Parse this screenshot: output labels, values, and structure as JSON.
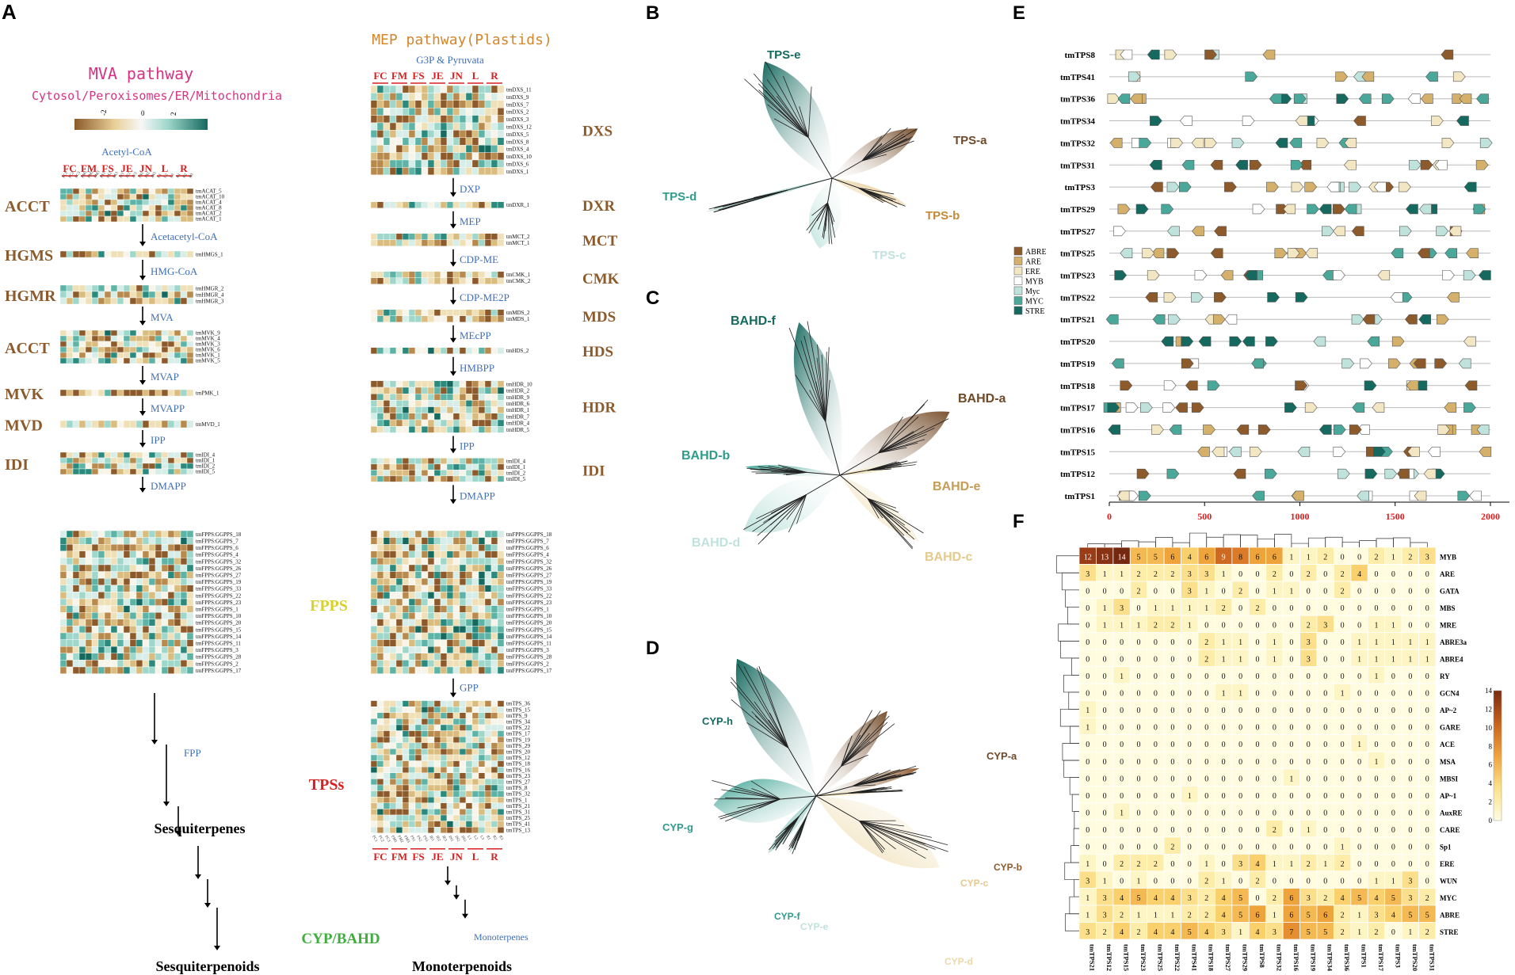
{
  "colors": {
    "brown": "#8c5a2b",
    "tan": "#d4b06a",
    "cream": "#f3e6c2",
    "white": "#f7f7f7",
    "mint": "#bfe3dc",
    "teal": "#4aa89a",
    "dark_teal": "#15695f",
    "blue_label": "#3f6fb5",
    "red_label": "#d82020",
    "pink_label": "#d63384",
    "orange_label": "#d4862a",
    "yellow_label": "#d7d12a",
    "green_label": "#3fae3f"
  },
  "panel_labels": [
    "A",
    "B",
    "C",
    "D",
    "E",
    "F"
  ],
  "panel_a": {
    "mva_title": "MVA pathway",
    "mva_subtitle": "Cytosol/Peroxisomes/ER/Mitochondria",
    "mep_title": "MEP pathway(Plastids)",
    "color_key": [
      "-2",
      "0",
      "2"
    ],
    "tissue_groups": [
      "FC",
      "FM",
      "FS",
      "JE",
      "JN",
      "L",
      "R"
    ],
    "sample_labels": [
      "FC1",
      "FC2",
      "FC3",
      "FM1",
      "FM2",
      "FM3",
      "FS1",
      "FS2",
      "FS3",
      "JE1",
      "JE2",
      "JE3",
      "JN1",
      "JN2",
      "JN3",
      "L1",
      "L2",
      "L3",
      "R1",
      "R2",
      "R3"
    ],
    "mva_start": "Acetyl-CoA",
    "mep_start": "G3P & Pyruvata",
    "mva_blocks": [
      {
        "enzyme": "ACCT",
        "genes": [
          "tmACAT_5",
          "tmACAT_10",
          "tmACAT_4",
          "tmACAT_8",
          "tmACAT_2",
          "tmACAT_1"
        ],
        "next": "Acetacetyl-CoA"
      },
      {
        "enzyme": "HGMS",
        "genes": [
          "tmHMGS_1"
        ],
        "next": "HMG-CoA"
      },
      {
        "enzyme": "HGMR",
        "genes": [
          "tmHMGR_2",
          "tmHMGR_4",
          "tmHMGR_3"
        ],
        "next": "MVA"
      },
      {
        "enzyme": "ACCT",
        "genes": [
          "tmMVK_9",
          "tmMVK_4",
          "tmMVK_3",
          "tmMVK_6",
          "tmMVK_1",
          "tmMVK_5"
        ],
        "next": "MVAP"
      },
      {
        "enzyme": "MVK",
        "genes": [
          "tmPMK_1"
        ],
        "next": "MVAPP"
      },
      {
        "enzyme": "MVD",
        "genes": [
          "tmMVD_1"
        ],
        "next": "IPP"
      },
      {
        "enzyme": "IDI",
        "genes": [
          "tmIDI_4",
          "tmIDI_1",
          "tmIDI_2",
          "tmIDI_5"
        ],
        "next": "DMAPP"
      }
    ],
    "mep_blocks": [
      {
        "enzyme": "DXS",
        "genes": [
          "tmDXS_11",
          "tmDXS_9",
          "tmDXS_7",
          "tmDXS_2",
          "tmDXS_3",
          "tmDXS_12",
          "tmDXS_5",
          "tmDXS_8",
          "tmDXS_4",
          "tmDXS_10",
          "tmDXS_6",
          "tmDXS_1"
        ],
        "next": "DXP"
      },
      {
        "enzyme": "DXR",
        "genes": [
          "tmDXR_1"
        ],
        "next": "MEP"
      },
      {
        "enzyme": "MCT",
        "genes": [
          "tmMCT_2",
          "tmMCT_1"
        ],
        "next": "CDP-ME"
      },
      {
        "enzyme": "CMK",
        "genes": [
          "tmCMK_1",
          "tmCMK_2"
        ],
        "next": "CDP-ME2P"
      },
      {
        "enzyme": "MDS",
        "genes": [
          "tmMDS_2",
          "tmMDS_1"
        ],
        "next": "MEcPP"
      },
      {
        "enzyme": "HDS",
        "genes": [
          "tmHDS_2"
        ],
        "next": "HMBPP"
      },
      {
        "enzyme": "HDR",
        "genes": [
          "tmHDR_10",
          "tmHDR_2",
          "tmHDR_9",
          "tmHDR_6",
          "tmHDR_1",
          "tmHDR_7",
          "tmHDR_4",
          "tmHDR_5"
        ],
        "next": "IPP"
      },
      {
        "enzyme": "IDI",
        "genes": [
          "tmIDI_4",
          "tmIDI_1",
          "tmIDI_2",
          "tmIDI_5"
        ],
        "next": "DMAPP"
      }
    ],
    "fpps_label": "FPPS",
    "fpps_genes": [
      "tmFPPS:GGPPS_18",
      "tmFPPS:GGPPS_7",
      "tmFPPS:GGPPS_6",
      "tmFPPS:GGPPS_4",
      "tmFPPS:GGPPS_32",
      "tmFPPS:GGPPS_26",
      "tmFPPS:GGPPS_27",
      "tmFPPS:GGPPS_19",
      "tmFPPS:GGPPS_33",
      "tmFPPS:GGPPS_22",
      "tmFPPS:GGPPS_23",
      "tmFPPS:GGPPS_1",
      "tmFPPS:GGPPS_10",
      "tmFPPS:GGPPS_20",
      "tmFPPS:GGPPS_15",
      "tmFPPS:GGPPS_14",
      "tmFPPS:GGPPS_11",
      "tmFPPS:GGPPS_3",
      "tmFPPS:GGPPS_28",
      "tmFPPS:GGPPS_2",
      "tmFPPS:GGPPS_17"
    ],
    "gpp_label": "GPP",
    "tps_label": "TPSs",
    "tps_genes": [
      "tmTPS_36",
      "tmTPS_15",
      "tmTPS_9",
      "tmTPS_34",
      "tmTPS_22",
      "tmTPS_17",
      "tmTPS_19",
      "tmTPS_29",
      "tmTPS_20",
      "tmTPS_12",
      "tmTPS_18",
      "tmTPS_16",
      "tmTPS_23",
      "tmTPS_27",
      "tmTPS_8",
      "tmTPS_32",
      "tmTPS_1",
      "tmTPS_21",
      "tmTPS_31",
      "tmTPS_25",
      "tmTPS_41",
      "tmTPS_13"
    ],
    "fpp_label": "FPP",
    "sesquiterpenes": "Sesquiterpenes",
    "sesquiterpenoids": "Sesquiterpenoids",
    "cyp_bahd": "CYP/BAHD",
    "monoterpenes": "Monoterpenes",
    "monoterpenoids": "Monoterpenoids"
  },
  "panel_b": {
    "clades": [
      "TPS-e",
      "TPS-a",
      "TPS-b",
      "TPS-c",
      "TPS-d"
    ]
  },
  "panel_c": {
    "clades": [
      "BAHD-f",
      "BAHD-a",
      "BAHD-e",
      "BAHD-b",
      "BAHD-d",
      "BAHD-c"
    ]
  },
  "panel_d": {
    "clades": [
      "CYP-h",
      "CYP-a",
      "CYP-g",
      "CYP-b",
      "CYP-c",
      "CYP-f",
      "CYP-e",
      "CYP-d"
    ]
  },
  "panel_e": {
    "genes": [
      "tmTPS8",
      "tmTPS41",
      "tmTPS36",
      "tmTPS34",
      "tmTPS32",
      "tmTPS31",
      "tmTPS3",
      "tmTPS29",
      "tmTPS27",
      "tmTPS25",
      "tmTPS23",
      "tmTPS22",
      "tmTPS21",
      "tmTPS20",
      "tmTPS19",
      "tmTPS18",
      "tmTPS17",
      "tmTPS16",
      "tmTPS15",
      "tmTPS12",
      "tmTPS1"
    ],
    "axis_ticks": [
      "0",
      "500",
      "1000",
      "1500",
      "2000"
    ],
    "axis_max": 2100,
    "legend": [
      {
        "label": "ABRE",
        "color": "#8c5a2b"
      },
      {
        "label": "ARE",
        "color": "#d4b06a"
      },
      {
        "label": "ERE",
        "color": "#f3e6c2"
      },
      {
        "label": "MYB",
        "color": "#ffffff"
      },
      {
        "label": "Myc",
        "color": "#bfe3dc"
      },
      {
        "label": "MYC",
        "color": "#4aa89a"
      },
      {
        "label": "STRE",
        "color": "#15695f"
      }
    ]
  },
  "chart_data": {
    "type": "heatmap",
    "title": "",
    "columns": [
      "tmTPS21",
      "tmTPS12",
      "tmTPS15",
      "tmTPS23",
      "tmTPS25",
      "tmTPS22",
      "tmTPS41",
      "tmTPS18",
      "tmTPS27",
      "tmTPS29",
      "tmTPS8",
      "tmTPS32",
      "tmTPS16",
      "tmTPS19",
      "tmTPS34",
      "tmTPS36",
      "tmTPS1",
      "tmTPS17",
      "tmTPS3",
      "tmTPS20",
      "tmTPS31"
    ],
    "rows": [
      "MYB",
      "ARE",
      "GATA",
      "MBS",
      "MRE",
      "ABRE3a",
      "ABRE4",
      "RY",
      "GCN4",
      "AP~2",
      "GARE",
      "ACE",
      "MSA",
      "MBSI",
      "AP~1",
      "AuxRE",
      "CARE",
      "Sp1",
      "ERE",
      "WUN",
      "MYC",
      "ABRE",
      "STRE"
    ],
    "values": [
      [
        12,
        13,
        14,
        5,
        5,
        6,
        4,
        6,
        9,
        8,
        6,
        6,
        1,
        1,
        2,
        0,
        0,
        2,
        1,
        2,
        3
      ],
      [
        3,
        1,
        1,
        2,
        2,
        2,
        3,
        3,
        1,
        0,
        0,
        2,
        0,
        2,
        0,
        2,
        4,
        0,
        0,
        0,
        0
      ],
      [
        0,
        0,
        0,
        2,
        0,
        0,
        3,
        1,
        0,
        2,
        0,
        1,
        1,
        0,
        0,
        2,
        0,
        0,
        0,
        0,
        0
      ],
      [
        0,
        1,
        3,
        0,
        1,
        1,
        1,
        1,
        2,
        0,
        2,
        0,
        0,
        0,
        0,
        0,
        0,
        0,
        0,
        0,
        0
      ],
      [
        0,
        1,
        1,
        1,
        2,
        2,
        1,
        0,
        0,
        0,
        0,
        0,
        0,
        2,
        3,
        0,
        0,
        1,
        1,
        0,
        0
      ],
      [
        0,
        0,
        0,
        0,
        0,
        0,
        0,
        2,
        1,
        1,
        0,
        1,
        0,
        3,
        0,
        0,
        1,
        1,
        1,
        1,
        1
      ],
      [
        0,
        0,
        0,
        0,
        0,
        0,
        0,
        2,
        1,
        1,
        0,
        1,
        0,
        3,
        0,
        0,
        1,
        1,
        1,
        1,
        1
      ],
      [
        0,
        0,
        1,
        0,
        0,
        0,
        0,
        0,
        0,
        0,
        0,
        0,
        0,
        0,
        0,
        0,
        0,
        1,
        0,
        0,
        0
      ],
      [
        0,
        0,
        0,
        0,
        0,
        0,
        0,
        0,
        1,
        1,
        0,
        0,
        0,
        0,
        0,
        1,
        0,
        0,
        0,
        0,
        0
      ],
      [
        1,
        0,
        0,
        0,
        0,
        0,
        0,
        0,
        0,
        0,
        0,
        0,
        0,
        0,
        0,
        0,
        0,
        0,
        0,
        0,
        0
      ],
      [
        1,
        0,
        0,
        0,
        0,
        0,
        0,
        0,
        0,
        0,
        0,
        0,
        0,
        0,
        0,
        0,
        0,
        0,
        0,
        0,
        0
      ],
      [
        0,
        0,
        0,
        0,
        0,
        0,
        0,
        0,
        0,
        0,
        0,
        0,
        0,
        0,
        0,
        0,
        1,
        0,
        0,
        0,
        0
      ],
      [
        0,
        0,
        0,
        0,
        0,
        0,
        0,
        0,
        0,
        0,
        0,
        0,
        0,
        0,
        0,
        0,
        0,
        1,
        0,
        0,
        0
      ],
      [
        0,
        0,
        0,
        0,
        0,
        0,
        0,
        0,
        0,
        0,
        0,
        0,
        1,
        0,
        0,
        0,
        0,
        0,
        0,
        0,
        0
      ],
      [
        0,
        0,
        0,
        0,
        0,
        0,
        1,
        0,
        0,
        0,
        0,
        0,
        0,
        0,
        0,
        0,
        0,
        0,
        0,
        0,
        0
      ],
      [
        0,
        0,
        1,
        0,
        0,
        0,
        0,
        0,
        0,
        0,
        0,
        0,
        0,
        0,
        0,
        0,
        0,
        0,
        0,
        0,
        0
      ],
      [
        0,
        0,
        0,
        0,
        0,
        0,
        0,
        0,
        0,
        0,
        0,
        2,
        0,
        1,
        0,
        0,
        0,
        0,
        0,
        0,
        0
      ],
      [
        0,
        0,
        0,
        0,
        0,
        2,
        0,
        0,
        0,
        0,
        0,
        0,
        0,
        0,
        0,
        1,
        0,
        0,
        0,
        0,
        0
      ],
      [
        1,
        0,
        2,
        2,
        2,
        0,
        0,
        1,
        0,
        3,
        4,
        1,
        1,
        2,
        1,
        2,
        0,
        0,
        0,
        0,
        0
      ],
      [
        3,
        1,
        0,
        1,
        0,
        0,
        0,
        2,
        1,
        0,
        2,
        0,
        0,
        0,
        0,
        0,
        0,
        1,
        1,
        3,
        0
      ],
      [
        1,
        3,
        4,
        5,
        4,
        4,
        3,
        2,
        4,
        5,
        0,
        2,
        6,
        3,
        2,
        4,
        5,
        4,
        5,
        3,
        2
      ],
      [
        1,
        3,
        2,
        1,
        1,
        1,
        2,
        2,
        4,
        5,
        6,
        1,
        6,
        5,
        6,
        2,
        1,
        3,
        4,
        5,
        5
      ],
      [
        3,
        2,
        4,
        2,
        4,
        4,
        5,
        4,
        3,
        1,
        4,
        3,
        7,
        5,
        5,
        2,
        1,
        2,
        0,
        1,
        2
      ]
    ],
    "legend_ticks": [
      "0",
      "2",
      "4",
      "6",
      "8",
      "10",
      "12",
      "14"
    ],
    "vmin": 0,
    "vmax": 14
  }
}
